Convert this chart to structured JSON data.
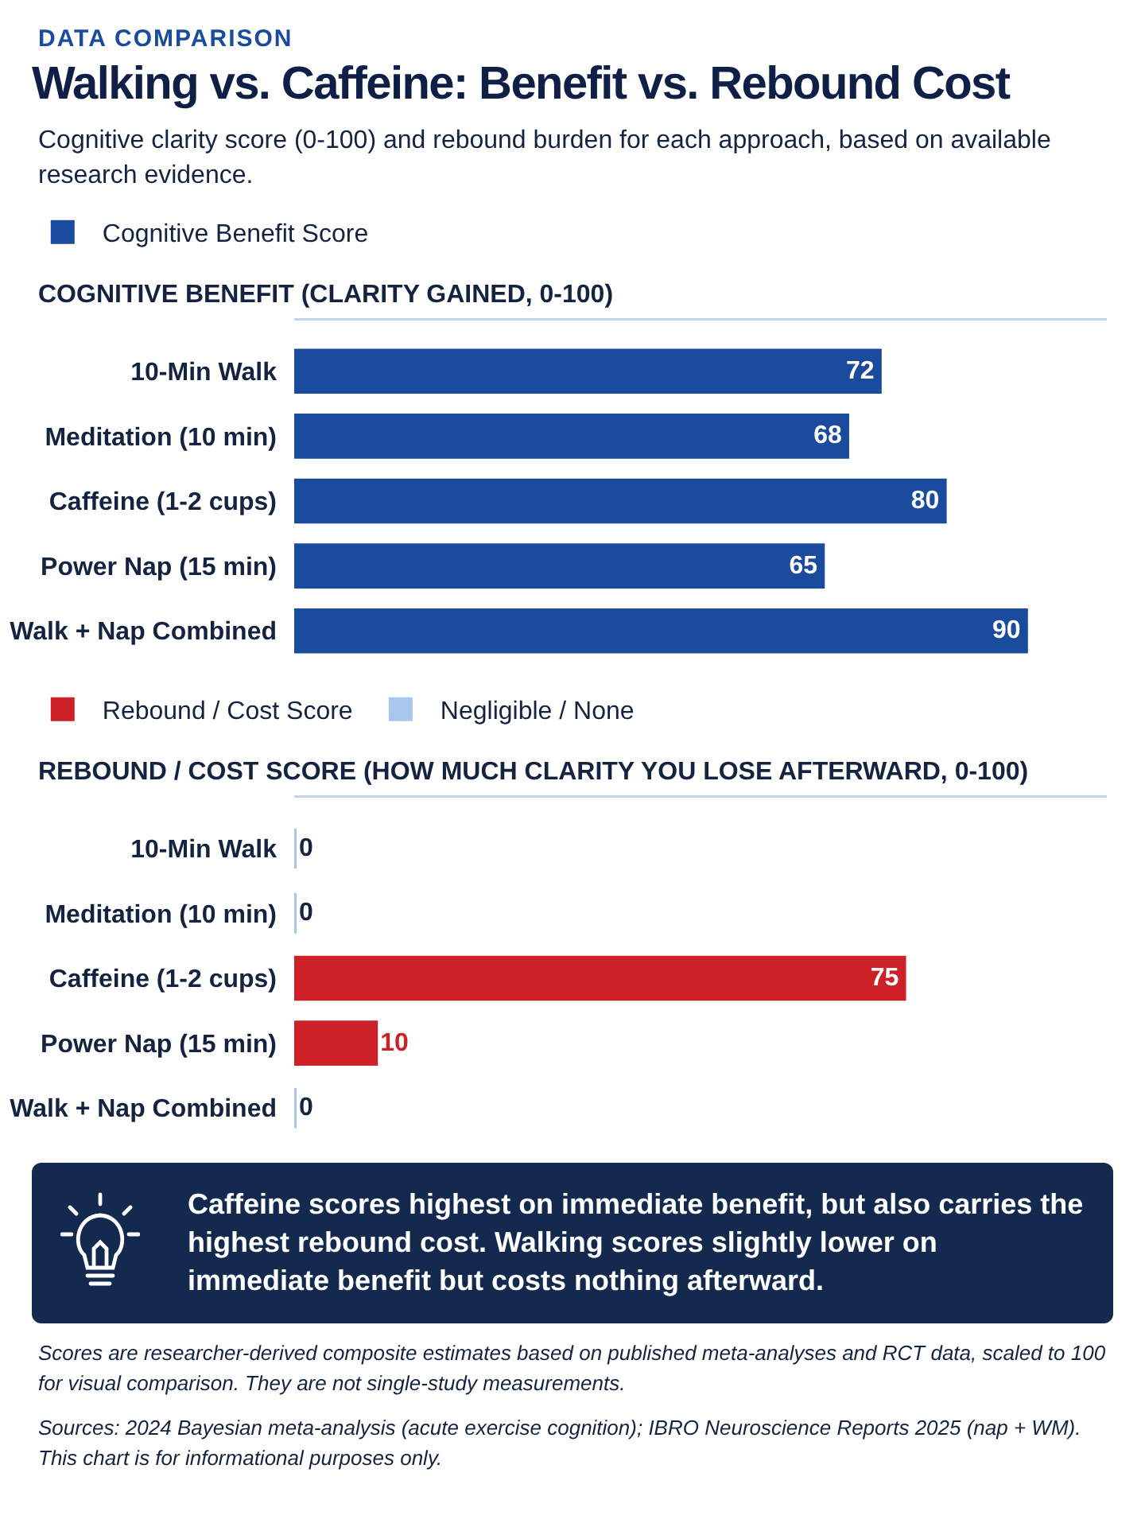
{
  "chart_data": [
    {
      "type": "other",
      "title": "Walking vs. Caffeine: Benefit vs. Rebound Cost",
      "subtitle": "Cognitive clarity score (0-100) and rebound burden for each approach, based on available research evidence.",
      "annotations": [
        "DATA COMPARISON"
      ]
    },
    {
      "type": "bar",
      "orientation": "horizontal",
      "title": "COGNITIVE BENEFIT (CLARITY GAINED, 0-100)",
      "categories": [
        "10-Min Walk",
        "Meditation (10 min)",
        "Caffeine (1-2 cups)",
        "Power Nap (15 min)",
        "Walk + Nap Combined"
      ],
      "xlim": [
        0,
        100
      ],
      "data_labels": true,
      "legend": "top",
      "series": [
        {
          "name": "Cognitive Benefit Score",
          "color": "#1a4b9c",
          "values": [
            72,
            68,
            80,
            65,
            90
          ]
        }
      ]
    },
    {
      "type": "bar",
      "orientation": "horizontal",
      "title": "REBOUND / COST SCORE (HOW MUCH CLARITY YOU LOSE AFTERWARD, 0-100)",
      "categories": [
        "10-Min Walk",
        "Meditation (10 min)",
        "Caffeine (1-2 cups)",
        "Power Nap (15 min)",
        "Walk + Nap Combined"
      ],
      "xlim": [
        0,
        100
      ],
      "data_labels": true,
      "legend": "top",
      "series": [
        {
          "name": "Rebound / Cost Score",
          "color": "#cc2127",
          "values": [
            null,
            null,
            75,
            10,
            null
          ]
        },
        {
          "name": "Negligible / None",
          "color": "#a9c6ec",
          "values": [
            0,
            0,
            null,
            null,
            0
          ]
        }
      ]
    },
    {
      "type": "other",
      "annotations": [
        "Caffeine scores highest on immediate benefit, but also carries the highest rebound cost. Walking scores slightly lower on immediate benefit but costs nothing afterward.",
        "Scores are researcher-derived composite estimates based on published meta-analyses and RCT data, scaled to 100 for visual comparison. They are not single-study measurements.",
        "Sources: 2024 Bayesian meta-analysis (acute exercise cognition); IBRO Neuroscience Reports 2025 (nap + WM). This chart is for informational purposes only."
      ]
    }
  ]
}
